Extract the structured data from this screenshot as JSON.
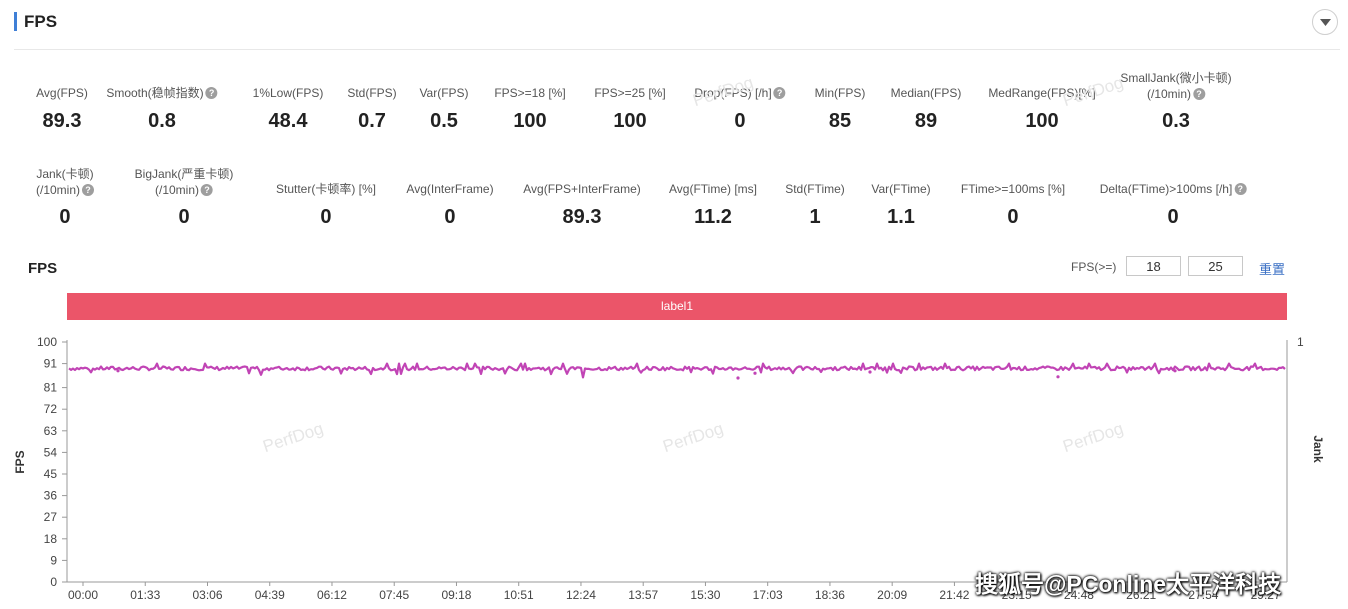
{
  "header": {
    "title": "FPS"
  },
  "stats_row1": [
    {
      "label": "Avg(FPS)",
      "value": "89.3"
    },
    {
      "label": "Smooth(稳帧指数)",
      "value": "0.8",
      "help": true
    },
    {
      "label": "1%Low(FPS)",
      "value": "48.4"
    },
    {
      "label": "Std(FPS)",
      "value": "0.7"
    },
    {
      "label": "Var(FPS)",
      "value": "0.5"
    },
    {
      "label": "FPS>=18 [%]",
      "value": "100"
    },
    {
      "label": "FPS>=25 [%]",
      "value": "100"
    },
    {
      "label": "Drop(FPS) [/h]",
      "value": "0",
      "help": true
    },
    {
      "label": "Min(FPS)",
      "value": "85"
    },
    {
      "label": "Median(FPS)",
      "value": "89"
    },
    {
      "label": "MedRange(FPS)[%]",
      "value": "100"
    },
    {
      "label": "SmallJank(微小卡顿)",
      "label2": "(/10min)",
      "value": "0.3",
      "help": true
    }
  ],
  "stats_row2": [
    {
      "label": "Jank(卡顿)",
      "label2": "(/10min)",
      "value": "0",
      "help": true
    },
    {
      "label": "BigJank(严重卡顿)",
      "label2": "(/10min)",
      "value": "0",
      "help": true
    },
    {
      "label": "Stutter(卡顿率) [%]",
      "value": "0"
    },
    {
      "label": "Avg(InterFrame)",
      "value": "0"
    },
    {
      "label": "Avg(FPS+InterFrame)",
      "value": "89.3"
    },
    {
      "label": "Avg(FTime) [ms]",
      "value": "11.2"
    },
    {
      "label": "Std(FTime)",
      "value": "1"
    },
    {
      "label": "Var(FTime)",
      "value": "1.1"
    },
    {
      "label": "FTime>=100ms [%]",
      "value": "0"
    },
    {
      "label": "Delta(FTime)>100ms [/h]",
      "value": "0",
      "help": true
    }
  ],
  "chart_section": {
    "title": "FPS",
    "threshold_label": "FPS(>=)",
    "threshold_1": "18",
    "threshold_2": "25",
    "reset_label": "重置",
    "label_bar": "label1"
  },
  "watermark": "PerfDog",
  "credit": "搜狐号@PConline太平洋科技",
  "chart_data": {
    "type": "line",
    "ylabel": "FPS",
    "y2label": "Jank",
    "ylim": [
      0,
      100
    ],
    "y2lim": [
      0,
      1
    ],
    "y_ticks": [
      "0",
      "9",
      "18",
      "27",
      "36",
      "45",
      "54",
      "63",
      "72",
      "81",
      "91",
      "100"
    ],
    "y2_ticks": [
      "1"
    ],
    "x_ticks": [
      "00:00",
      "01:33",
      "03:06",
      "04:39",
      "06:12",
      "07:45",
      "09:18",
      "10:51",
      "12:24",
      "13:57",
      "15:30",
      "17:03",
      "18:36",
      "20:09",
      "21:42",
      "23:15",
      "24:48",
      "26:21",
      "27:54",
      "29:27"
    ],
    "series": [
      {
        "name": "FPS",
        "color": "#c144b5",
        "baseline": 89,
        "min": 85,
        "max": 91
      }
    ],
    "grid": false
  }
}
